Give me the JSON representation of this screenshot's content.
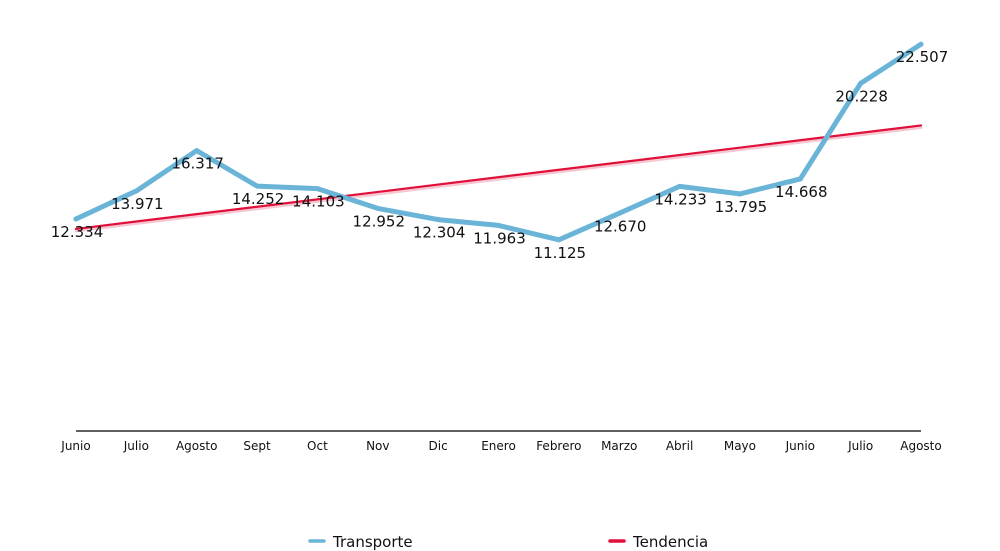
{
  "chart_data": {
    "type": "line",
    "categories": [
      "Junio",
      "Julio",
      "Agosto",
      "Sept",
      "Oct",
      "Nov",
      "Dic",
      "Enero",
      "Febrero",
      "Marzo",
      "Abril",
      "Mayo",
      "Junio",
      "Julio",
      "Agosto"
    ],
    "series": [
      {
        "name": "Transporte",
        "color": "#6ab4d8",
        "values": [
          12.334,
          13.971,
          16.317,
          14.252,
          14.103,
          12.952,
          12.304,
          11.963,
          11.125,
          12.67,
          14.233,
          13.795,
          14.668,
          20.228,
          22.507
        ],
        "data_labels": [
          "12.334",
          "13.971",
          "16.317",
          "14.252",
          "14.103",
          "12.952",
          "12.304",
          "11.963",
          "11.125",
          "12.670",
          "14.233",
          "13.795",
          "14.668",
          "20.228",
          "22.507"
        ]
      },
      {
        "name": "Tendencia",
        "color": "#e0103a",
        "start_value": 11.76,
        "end_value": 17.78
      }
    ],
    "ylim": [
      0,
      23.8
    ],
    "grid": false,
    "legend_position": "bottom"
  }
}
